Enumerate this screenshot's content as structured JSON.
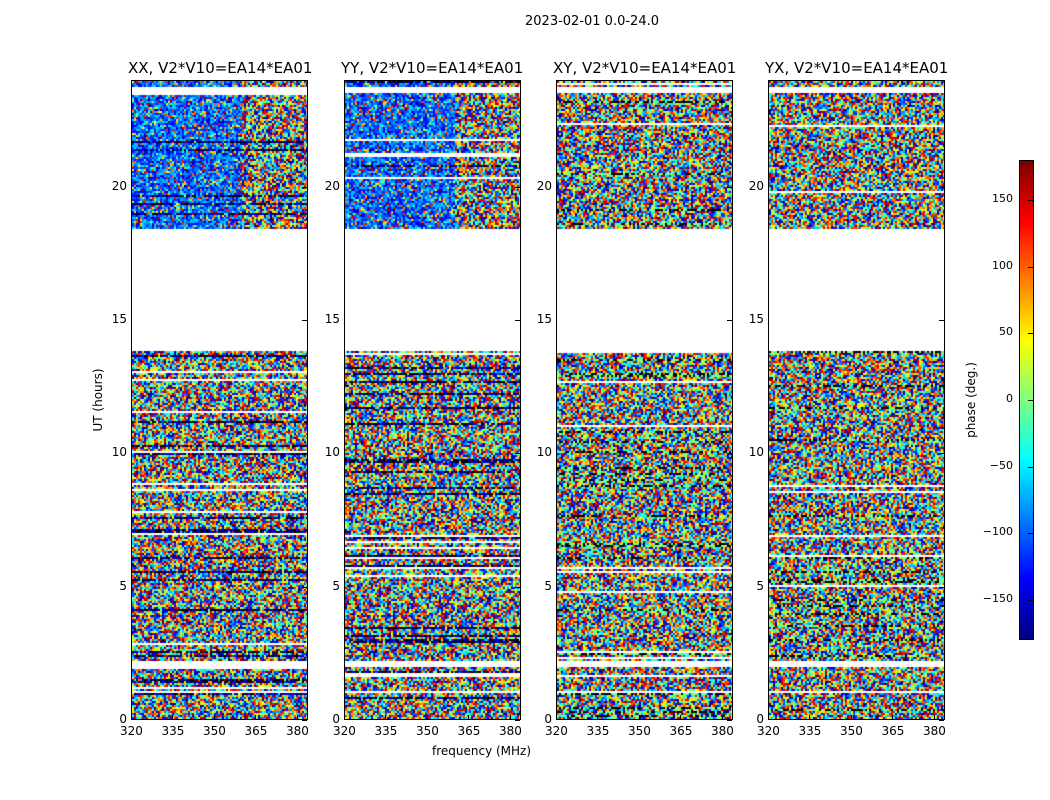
{
  "chart_data": {
    "type": "heatmap",
    "title": "2023-02-01 0.0-24.0",
    "xlabel": "frequency (MHz)",
    "ylabel": "UT (hours)",
    "xlim": [
      320,
      384
    ],
    "ylim": [
      0,
      24
    ],
    "xticks": [
      "320",
      "335",
      "350",
      "365",
      "380"
    ],
    "yticks": [
      "0",
      "5",
      "10",
      "15",
      "20"
    ],
    "panels": [
      {
        "title": "XX, V2*V10=EA14*EA01"
      },
      {
        "title": "YY, V2*V10=EA14*EA01"
      },
      {
        "title": "XY, V2*V10=EA14*EA01"
      },
      {
        "title": "YX, V2*V10=EA14*EA01"
      }
    ],
    "no_data_ut_ranges": [
      [
        1.0,
        1.1
      ],
      [
        2.0,
        2.2
      ],
      [
        13.9,
        18.5
      ],
      [
        23.6,
        23.8
      ]
    ],
    "colorbar": {
      "label": "phase (deg.)",
      "range": [
        -180,
        180
      ],
      "ticks": [
        "150",
        "100",
        "50",
        "0",
        "−50",
        "−100",
        "−150"
      ],
      "colormap": "jet"
    }
  }
}
